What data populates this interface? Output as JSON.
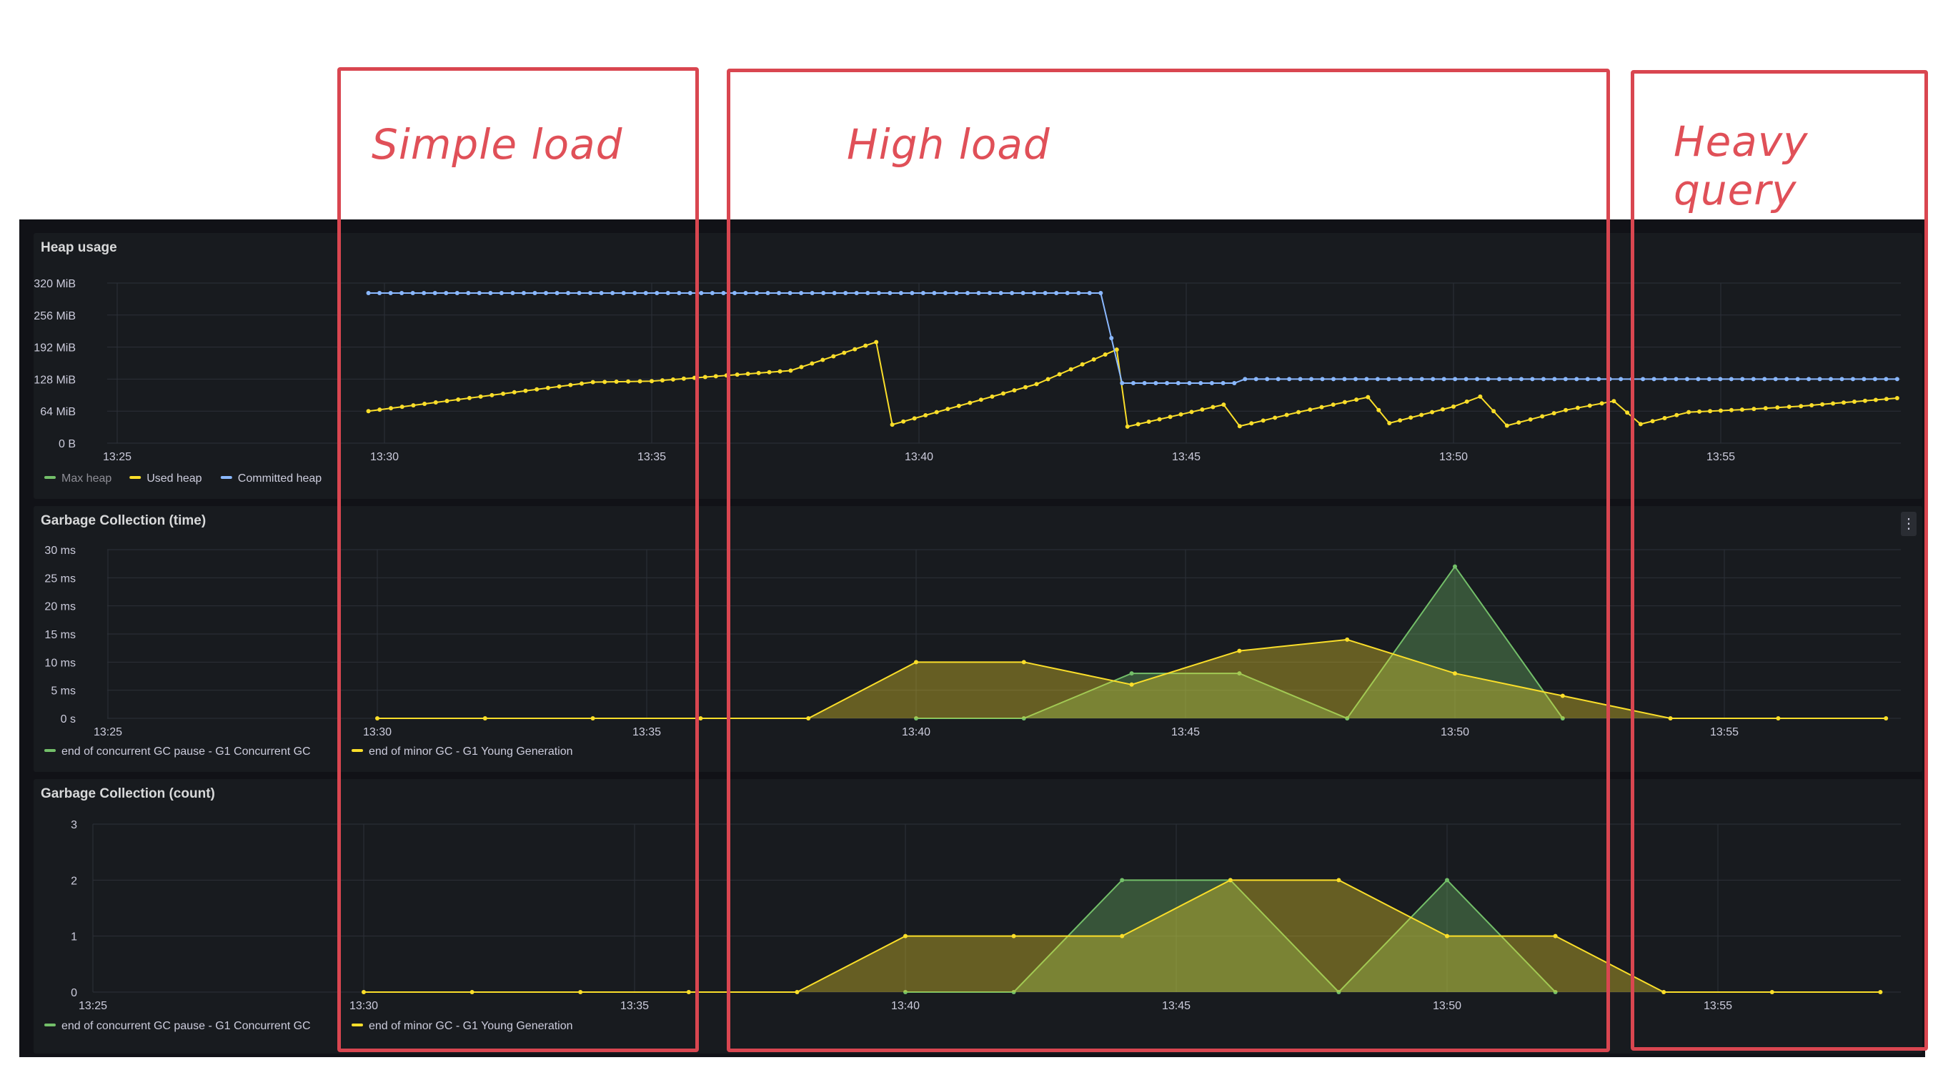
{
  "annotations": {
    "simple": "Simple load",
    "high": "High load",
    "heavy": "Heavy query"
  },
  "colors": {
    "max": "#73bf69",
    "used": "#fade2a",
    "committed": "#8ab8ff",
    "concurrent": "#73bf69",
    "minor": "#fade2a"
  },
  "chart_data": [
    {
      "type": "line",
      "title": "Heap usage",
      "x_unit": "time",
      "x_ticks": [
        "13:25",
        "13:30",
        "13:35",
        "13:40",
        "13:45",
        "13:50",
        "13:55"
      ],
      "y_ticks": [
        "0 B",
        "64 MiB",
        "128 MiB",
        "192 MiB",
        "256 MiB",
        "320 MiB"
      ],
      "ylim": [
        0,
        320
      ],
      "legend_placement": "bottom-left",
      "series": [
        {
          "name": "Max heap",
          "color": "#73bf69",
          "points": []
        },
        {
          "name": "Used heap",
          "color": "#fade2a",
          "points": [
            [
              29.7,
              64
            ],
            [
              33.9,
              122
            ],
            [
              35,
              124
            ],
            [
              37.6,
              145
            ],
            [
              39.2,
              202
            ],
            [
              39.5,
              37
            ],
            [
              42.2,
              118
            ],
            [
              43.7,
              187
            ],
            [
              43.9,
              33
            ],
            [
              45.7,
              77
            ],
            [
              46.0,
              34
            ],
            [
              47.1,
              62
            ],
            [
              48.4,
              92
            ],
            [
              48.8,
              40
            ],
            [
              50.0,
              73
            ],
            [
              50.5,
              93
            ],
            [
              51.0,
              35
            ],
            [
              52.1,
              66
            ],
            [
              53.0,
              84
            ],
            [
              53.5,
              38
            ],
            [
              54.4,
              62
            ],
            [
              55.4,
              67
            ],
            [
              56.5,
              74
            ],
            [
              58.3,
              90
            ]
          ]
        },
        {
          "name": "Committed heap",
          "color": "#8ab8ff",
          "points": [
            [
              29.7,
              300
            ],
            [
              43.4,
              300
            ],
            [
              43.8,
              120
            ],
            [
              45.9,
              120
            ],
            [
              46.1,
              128
            ],
            [
              58.3,
              128
            ]
          ]
        }
      ]
    },
    {
      "type": "area",
      "title": "Garbage Collection (time)",
      "x_unit": "time",
      "x_ticks": [
        "13:25",
        "13:30",
        "13:35",
        "13:40",
        "13:45",
        "13:50",
        "13:55"
      ],
      "y_ticks": [
        "0 s",
        "5 ms",
        "10 ms",
        "15 ms",
        "20 ms",
        "25 ms",
        "30 ms"
      ],
      "ylim": [
        0,
        30
      ],
      "legend_placement": "bottom-left",
      "series": [
        {
          "name": "end of concurrent GC pause - G1 Concurrent GC",
          "color": "#73bf69",
          "points": [
            [
              40,
              0
            ],
            [
              42,
              0
            ],
            [
              44,
              8
            ],
            [
              46,
              8
            ],
            [
              48,
              0
            ],
            [
              50,
              27
            ],
            [
              52,
              0
            ]
          ]
        },
        {
          "name": "end of minor GC - G1 Young Generation",
          "color": "#fade2a",
          "points": [
            [
              30,
              0
            ],
            [
              32,
              0
            ],
            [
              34,
              0
            ],
            [
              36,
              0
            ],
            [
              38,
              0
            ],
            [
              40,
              10
            ],
            [
              42,
              10
            ],
            [
              44,
              6
            ],
            [
              46,
              12
            ],
            [
              48,
              14
            ],
            [
              50,
              8
            ],
            [
              52,
              4
            ],
            [
              54,
              0
            ],
            [
              56,
              0
            ],
            [
              58,
              0
            ]
          ]
        }
      ]
    },
    {
      "type": "area",
      "title": "Garbage Collection (count)",
      "x_unit": "time",
      "x_ticks": [
        "13:25",
        "13:30",
        "13:35",
        "13:40",
        "13:45",
        "13:50",
        "13:55"
      ],
      "y_ticks": [
        "0",
        "1",
        "2",
        "3"
      ],
      "ylim": [
        0,
        3
      ],
      "legend_placement": "bottom-left",
      "series": [
        {
          "name": "end of concurrent GC pause - G1 Concurrent GC",
          "color": "#73bf69",
          "points": [
            [
              40,
              0
            ],
            [
              42,
              0
            ],
            [
              44,
              2
            ],
            [
              46,
              2
            ],
            [
              48,
              0
            ],
            [
              50,
              2
            ],
            [
              52,
              0
            ]
          ]
        },
        {
          "name": "end of minor GC - G1 Young Generation",
          "color": "#fade2a",
          "points": [
            [
              30,
              0
            ],
            [
              32,
              0
            ],
            [
              34,
              0
            ],
            [
              36,
              0
            ],
            [
              38,
              0
            ],
            [
              40,
              1
            ],
            [
              42,
              1
            ],
            [
              44,
              1
            ],
            [
              46,
              2
            ],
            [
              48,
              2
            ],
            [
              50,
              1
            ],
            [
              52,
              1
            ],
            [
              54,
              0
            ],
            [
              56,
              0
            ],
            [
              58,
              0
            ]
          ]
        }
      ]
    }
  ]
}
